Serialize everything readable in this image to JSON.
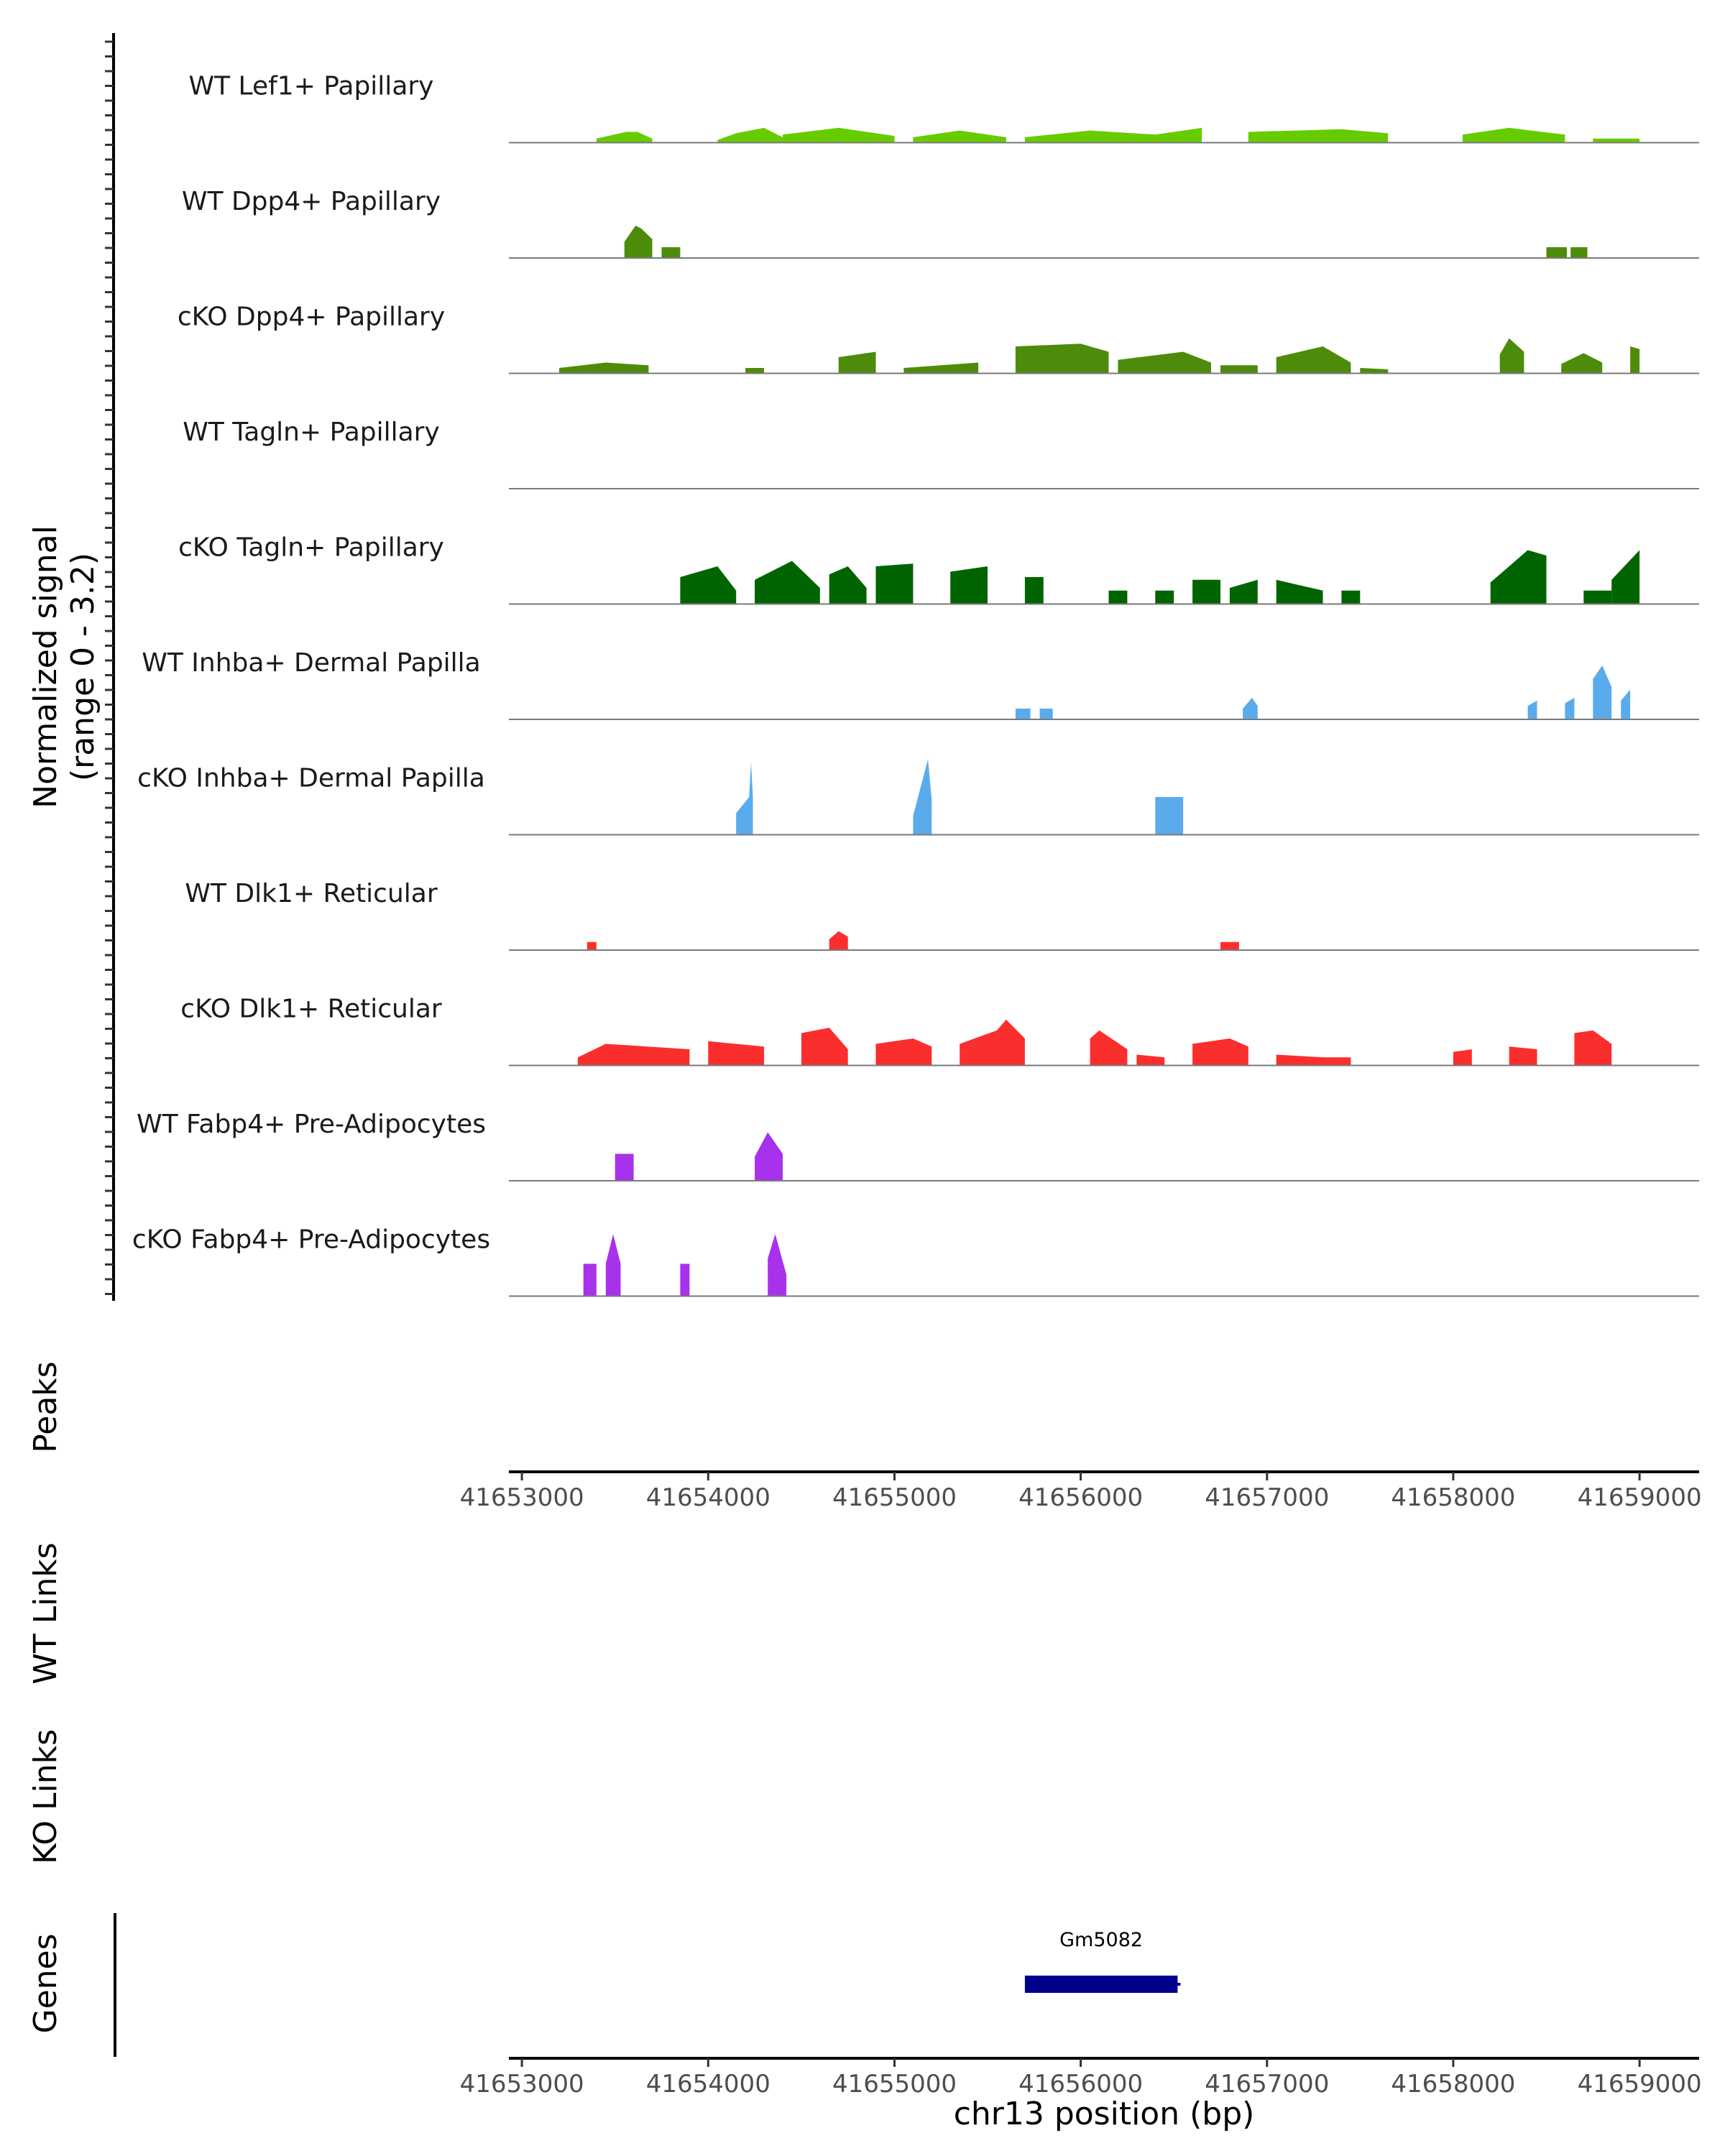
{
  "chart_data": {
    "type": "area",
    "title": "",
    "chromosome": "chr13",
    "xlabel": "chr13 position (bp)",
    "xlim": [
      41652930,
      41659320
    ],
    "xticks": [
      41653000,
      41654000,
      41655000,
      41656000,
      41657000,
      41658000,
      41659000
    ],
    "xtick_labels": [
      "41653000",
      "41654000",
      "41655000",
      "41656000",
      "41657000",
      "41658000",
      "41659000"
    ],
    "ylabel_line1": "Normalized signal",
    "ylabel_line2": "(range 0 - 3.2)",
    "ylim": [
      0,
      3.2
    ],
    "series": [
      {
        "name": "WT Lef1+ Papillary",
        "color": "#66cc00",
        "regions": [
          {
            "x": [
              41653400,
              41653560,
              41653620,
              41653700
            ],
            "y": [
              0.15,
              0.4,
              0.4,
              0.15
            ]
          },
          {
            "x": [
              41654050,
              41654150,
              41654300,
              41654400
            ],
            "y": [
              0.1,
              0.35,
              0.55,
              0.2
            ]
          },
          {
            "x": [
              41654400,
              41654700,
              41655000
            ],
            "y": [
              0.3,
              0.55,
              0.25
            ]
          },
          {
            "x": [
              41655100,
              41655350,
              41655600
            ],
            "y": [
              0.2,
              0.45,
              0.2
            ]
          },
          {
            "x": [
              41655700,
              41656050,
              41656400,
              41656650
            ],
            "y": [
              0.2,
              0.45,
              0.3,
              0.55
            ]
          },
          {
            "x": [
              41656900,
              41657400,
              41657650
            ],
            "y": [
              0.4,
              0.5,
              0.35
            ]
          },
          {
            "x": [
              41658050,
              41658300,
              41658600
            ],
            "y": [
              0.3,
              0.55,
              0.3
            ]
          },
          {
            "x": [
              41658750,
              41659000
            ],
            "y": [
              0.15,
              0.15
            ]
          }
        ]
      },
      {
        "name": "WT Dpp4+ Papillary",
        "color": "#4d8c0a",
        "regions": [
          {
            "x": [
              41653550,
              41653610,
              41653640,
              41653700
            ],
            "y": [
              0.6,
              1.2,
              1.1,
              0.7
            ]
          },
          {
            "x": [
              41653750,
              41653850
            ],
            "y": [
              0.4,
              0.4
            ]
          },
          {
            "x": [
              41658500,
              41658610
            ],
            "y": [
              0.4,
              0.4
            ]
          },
          {
            "x": [
              41658630,
              41658720
            ],
            "y": [
              0.4,
              0.4
            ]
          }
        ]
      },
      {
        "name": "cKO Dpp4+ Papillary",
        "color": "#4d8c0a",
        "regions": [
          {
            "x": [
              41653200,
              41653450,
              41653680
            ],
            "y": [
              0.2,
              0.4,
              0.3
            ]
          },
          {
            "x": [
              41654200,
              41654300
            ],
            "y": [
              0.2,
              0.2
            ]
          },
          {
            "x": [
              41654700,
              41654900
            ],
            "y": [
              0.6,
              0.8
            ]
          },
          {
            "x": [
              41655050,
              41655450
            ],
            "y": [
              0.2,
              0.4
            ]
          },
          {
            "x": [
              41655650,
              41656000,
              41656150
            ],
            "y": [
              1.0,
              1.1,
              0.8
            ]
          },
          {
            "x": [
              41656200,
              41656550,
              41656700
            ],
            "y": [
              0.5,
              0.8,
              0.4
            ]
          },
          {
            "x": [
              41656750,
              41656950
            ],
            "y": [
              0.3,
              0.3
            ]
          },
          {
            "x": [
              41657050,
              41657300,
              41657450
            ],
            "y": [
              0.6,
              1.0,
              0.4
            ]
          },
          {
            "x": [
              41657500,
              41657650
            ],
            "y": [
              0.2,
              0.15
            ]
          },
          {
            "x": [
              41658250,
              41658300,
              41658380
            ],
            "y": [
              0.7,
              1.3,
              0.8
            ]
          },
          {
            "x": [
              41658580,
              41658700,
              41658800
            ],
            "y": [
              0.35,
              0.75,
              0.4
            ]
          },
          {
            "x": [
              41658950,
              41659000
            ],
            "y": [
              1.0,
              0.9
            ]
          }
        ]
      },
      {
        "name": "WT Tagln+ Papillary",
        "color": "#006400",
        "regions": []
      },
      {
        "name": "cKO Tagln+ Papillary",
        "color": "#006400",
        "regions": [
          {
            "x": [
              41653850,
              41654050,
              41654150
            ],
            "y": [
              1.0,
              1.4,
              0.5
            ]
          },
          {
            "x": [
              41654250,
              41654450,
              41654600
            ],
            "y": [
              0.9,
              1.6,
              0.6
            ]
          },
          {
            "x": [
              41654650,
              41654750,
              41654850
            ],
            "y": [
              1.1,
              1.4,
              0.6
            ]
          },
          {
            "x": [
              41654900,
              41655100
            ],
            "y": [
              1.4,
              1.5
            ]
          },
          {
            "x": [
              41655300,
              41655500
            ],
            "y": [
              1.2,
              1.4
            ]
          },
          {
            "x": [
              41655700,
              41655800
            ],
            "y": [
              1.0,
              1.0
            ]
          },
          {
            "x": [
              41656150,
              41656250
            ],
            "y": [
              0.5,
              0.5
            ]
          },
          {
            "x": [
              41656400,
              41656500
            ],
            "y": [
              0.5,
              0.5
            ]
          },
          {
            "x": [
              41656600,
              41656750
            ],
            "y": [
              0.9,
              0.9
            ]
          },
          {
            "x": [
              41656800,
              41656950
            ],
            "y": [
              0.6,
              0.9
            ]
          },
          {
            "x": [
              41657050,
              41657300
            ],
            "y": [
              0.9,
              0.5
            ]
          },
          {
            "x": [
              41657400,
              41657500
            ],
            "y": [
              0.5,
              0.5
            ]
          },
          {
            "x": [
              41658200,
              41658400,
              41658500
            ],
            "y": [
              0.8,
              2.0,
              1.8
            ]
          },
          {
            "x": [
              41658700,
              41658850
            ],
            "y": [
              0.5,
              0.5
            ]
          },
          {
            "x": [
              41658850,
              41659000
            ],
            "y": [
              0.9,
              2.0
            ]
          }
        ]
      },
      {
        "name": "WT Inhba+ Dermal Papilla",
        "color": "#5aabec",
        "regions": [
          {
            "x": [
              41655650,
              41655730
            ],
            "y": [
              0.4,
              0.4
            ]
          },
          {
            "x": [
              41655780,
              41655850
            ],
            "y": [
              0.4,
              0.4
            ]
          },
          {
            "x": [
              41656870,
              41656920,
              41656950
            ],
            "y": [
              0.4,
              0.8,
              0.5
            ]
          },
          {
            "x": [
              41658400,
              41658450
            ],
            "y": [
              0.5,
              0.7
            ]
          },
          {
            "x": [
              41658600,
              41658650
            ],
            "y": [
              0.6,
              0.8
            ]
          },
          {
            "x": [
              41658750,
              41658800,
              41658850
            ],
            "y": [
              1.5,
              2.0,
              1.2
            ]
          },
          {
            "x": [
              41658900,
              41658950
            ],
            "y": [
              0.7,
              1.1
            ]
          }
        ]
      },
      {
        "name": "cKO Inhba+ Dermal Papilla",
        "color": "#5aabec",
        "regions": [
          {
            "x": [
              41654150,
              41654220,
              41654230,
              41654240
            ],
            "y": [
              0.8,
              1.4,
              2.7,
              1.4
            ]
          },
          {
            "x": [
              41655100,
              41655180,
              41655200
            ],
            "y": [
              0.7,
              2.8,
              1.3
            ]
          },
          {
            "x": [
              41656400,
              41656550
            ],
            "y": [
              1.4,
              1.4
            ]
          }
        ]
      },
      {
        "name": "WT Dlk1+ Reticular",
        "color": "#fb2e2e",
        "regions": [
          {
            "x": [
              41653350,
              41653400
            ],
            "y": [
              0.3,
              0.3
            ]
          },
          {
            "x": [
              41654650,
              41654700,
              41654750
            ],
            "y": [
              0.4,
              0.7,
              0.5
            ]
          },
          {
            "x": [
              41656750,
              41656850
            ],
            "y": [
              0.3,
              0.3
            ]
          }
        ]
      },
      {
        "name": "cKO Dlk1+ Reticular",
        "color": "#fb2e2e",
        "regions": [
          {
            "x": [
              41653300,
              41653450,
              41653900
            ],
            "y": [
              0.3,
              0.8,
              0.6
            ]
          },
          {
            "x": [
              41654000,
              41654300
            ],
            "y": [
              0.9,
              0.7
            ]
          },
          {
            "x": [
              41654500,
              41654650,
              41654750
            ],
            "y": [
              1.2,
              1.4,
              0.6
            ]
          },
          {
            "x": [
              41654900,
              41655100,
              41655200
            ],
            "y": [
              0.8,
              1.0,
              0.7
            ]
          },
          {
            "x": [
              41655350,
              41655550,
              41655600,
              41655700
            ],
            "y": [
              0.8,
              1.3,
              1.7,
              1.0
            ]
          },
          {
            "x": [
              41656050,
              41656100,
              41656250
            ],
            "y": [
              1.0,
              1.3,
              0.6
            ]
          },
          {
            "x": [
              41656300,
              41656450
            ],
            "y": [
              0.4,
              0.3
            ]
          },
          {
            "x": [
              41656600,
              41656800,
              41656900
            ],
            "y": [
              0.8,
              1.0,
              0.7
            ]
          },
          {
            "x": [
              41657050,
              41657300,
              41657450
            ],
            "y": [
              0.4,
              0.3,
              0.3
            ]
          },
          {
            "x": [
              41658000,
              41658100
            ],
            "y": [
              0.5,
              0.6
            ]
          },
          {
            "x": [
              41658300,
              41658450
            ],
            "y": [
              0.7,
              0.6
            ]
          },
          {
            "x": [
              41658650,
              41658750,
              41658850
            ],
            "y": [
              1.2,
              1.3,
              0.8
            ]
          }
        ]
      },
      {
        "name": "WT Fabp4+ Pre-Adipocytes",
        "color": "#a832eb",
        "regions": [
          {
            "x": [
              41653500,
              41653600
            ],
            "y": [
              1.0,
              1.0
            ]
          },
          {
            "x": [
              41654250,
              41654320,
              41654400
            ],
            "y": [
              0.9,
              1.8,
              1.0
            ]
          }
        ]
      },
      {
        "name": "cKO Fabp4+ Pre-Adipocytes",
        "color": "#a832eb",
        "regions": [
          {
            "x": [
              41653330,
              41653400
            ],
            "y": [
              1.2,
              1.2
            ]
          },
          {
            "x": [
              41653450,
              41653490,
              41653530
            ],
            "y": [
              1.2,
              2.3,
              1.2
            ]
          },
          {
            "x": [
              41653850,
              41653900
            ],
            "y": [
              1.2,
              1.2
            ]
          },
          {
            "x": [
              41654320,
              41654360,
              41654420
            ],
            "y": [
              1.4,
              2.3,
              0.8
            ]
          }
        ]
      }
    ],
    "peaks_label": "Peaks",
    "wt_links_label": "WT Links",
    "ko_links_label": "KO Links",
    "genes_label": "Genes",
    "genes": [
      {
        "name": "Gm5082",
        "start": 41655700,
        "end": 41656520,
        "strand": "-",
        "color": "#00008b"
      }
    ]
  }
}
